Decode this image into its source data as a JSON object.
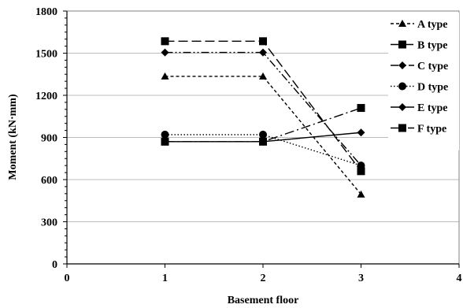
{
  "chart_data": {
    "type": "line",
    "xlabel": "Basement floor",
    "ylabel": "Moment (kN·mm)",
    "xlim": [
      0,
      4
    ],
    "ylim": [
      0,
      1800
    ],
    "xticks": [
      "0",
      "1",
      "2",
      "3",
      "4"
    ],
    "yticks": [
      "0",
      "300",
      "600",
      "900",
      "1200",
      "1500",
      "1800"
    ],
    "grid": "horizontal",
    "legend_position": "right",
    "x": [
      1,
      2,
      3
    ],
    "series": [
      {
        "name": "A type",
        "values": [
          1335,
          1335,
          495
        ],
        "marker": "triangle",
        "dash": "4,3",
        "color": "#000000"
      },
      {
        "name": "B type",
        "values": [
          1585,
          1585,
          660
        ],
        "marker": "square",
        "dash": "12,5",
        "color": "#000000"
      },
      {
        "name": "C type",
        "values": [
          1505,
          1505,
          700
        ],
        "marker": "diamond",
        "dash": "10,3,2,3,2,3",
        "color": "#000000"
      },
      {
        "name": "D type",
        "values": [
          920,
          920,
          700
        ],
        "marker": "circle",
        "dash": "1.5,2.5",
        "color": "#000000"
      },
      {
        "name": "E type",
        "values": [
          870,
          870,
          935
        ],
        "marker": "diamond",
        "dash": "",
        "color": "#000000"
      },
      {
        "name": "F type",
        "values": [
          870,
          870,
          1110
        ],
        "marker": "square",
        "dash": "12,4,2,4",
        "color": "#000000"
      }
    ]
  }
}
